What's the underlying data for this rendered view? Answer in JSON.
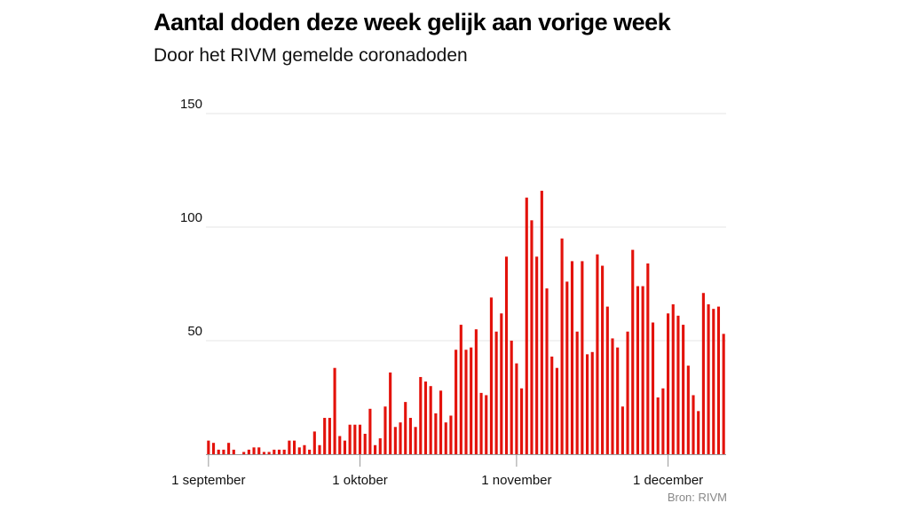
{
  "title": "Aantal doden deze week gelijk aan vorige week",
  "subtitle": "Door het RIVM gemelde coronadoden",
  "source": "Bron: RIVM",
  "colors": {
    "bar": "#e3120b",
    "grid": "#e6e6e6",
    "axis": "#999999"
  },
  "chart_data": {
    "type": "bar",
    "title": "Aantal doden deze week gelijk aan vorige week",
    "subtitle": "Door het RIVM gemelde coronadoden",
    "xlabel": "",
    "ylabel": "",
    "ylim": [
      0,
      150
    ],
    "y_ticks": [
      50,
      100,
      150
    ],
    "grid": true,
    "x_ticks": [
      {
        "label": "1 september",
        "date": "2020-09-01"
      },
      {
        "label": "1 oktober",
        "date": "2020-10-01"
      },
      {
        "label": "1 november",
        "date": "2020-11-01"
      },
      {
        "label": "1 december",
        "date": "2020-12-01"
      }
    ],
    "series": [
      {
        "categories": [
          "2020-09-01",
          "2020-09-02",
          "2020-09-03",
          "2020-09-04",
          "2020-09-05",
          "2020-09-06",
          "2020-09-07",
          "2020-09-08",
          "2020-09-09",
          "2020-09-10",
          "2020-09-11",
          "2020-09-12",
          "2020-09-13",
          "2020-09-14",
          "2020-09-15",
          "2020-09-16",
          "2020-09-17",
          "2020-09-18",
          "2020-09-19",
          "2020-09-20",
          "2020-09-21",
          "2020-09-22",
          "2020-09-23",
          "2020-09-24",
          "2020-09-25",
          "2020-09-26",
          "2020-09-27",
          "2020-09-28",
          "2020-09-29",
          "2020-09-30",
          "2020-10-01",
          "2020-10-02",
          "2020-10-03",
          "2020-10-04",
          "2020-10-05",
          "2020-10-06",
          "2020-10-07",
          "2020-10-08",
          "2020-10-09",
          "2020-10-10",
          "2020-10-11",
          "2020-10-12",
          "2020-10-13",
          "2020-10-14",
          "2020-10-15",
          "2020-10-16",
          "2020-10-17",
          "2020-10-18",
          "2020-10-19",
          "2020-10-20",
          "2020-10-21",
          "2020-10-22",
          "2020-10-23",
          "2020-10-24",
          "2020-10-25",
          "2020-10-26",
          "2020-10-27",
          "2020-10-28",
          "2020-10-29",
          "2020-10-30",
          "2020-10-31",
          "2020-11-01",
          "2020-11-02",
          "2020-11-03",
          "2020-11-04",
          "2020-11-05",
          "2020-11-06",
          "2020-11-07",
          "2020-11-08",
          "2020-11-09",
          "2020-11-10",
          "2020-11-11",
          "2020-11-12",
          "2020-11-13",
          "2020-11-14",
          "2020-11-15",
          "2020-11-16",
          "2020-11-17",
          "2020-11-18",
          "2020-11-19",
          "2020-11-20",
          "2020-11-21",
          "2020-11-22",
          "2020-11-23",
          "2020-11-24",
          "2020-11-25",
          "2020-11-26",
          "2020-11-27",
          "2020-11-28",
          "2020-11-29",
          "2020-11-30",
          "2020-12-01",
          "2020-12-02",
          "2020-12-03",
          "2020-12-04",
          "2020-12-05",
          "2020-12-06",
          "2020-12-07",
          "2020-12-08",
          "2020-12-09",
          "2020-12-10",
          "2020-12-11",
          "2020-12-12"
        ],
        "values": [
          6,
          5,
          2,
          2,
          5,
          2,
          0,
          1,
          2,
          3,
          3,
          1,
          1,
          2,
          2,
          2,
          6,
          6,
          3,
          4,
          2,
          10,
          4,
          16,
          16,
          38,
          8,
          6,
          13,
          13,
          13,
          9,
          20,
          4,
          7,
          21,
          36,
          12,
          14,
          23,
          16,
          12,
          34,
          32,
          30,
          18,
          28,
          14,
          17,
          46,
          57,
          46,
          47,
          55,
          27,
          26,
          69,
          54,
          62,
          87,
          50,
          40,
          29,
          113,
          103,
          87,
          116,
          73,
          43,
          38,
          95,
          76,
          85,
          54,
          85,
          44,
          45,
          88,
          83,
          65,
          51,
          47,
          21,
          54,
          90,
          74,
          74,
          84,
          58,
          25,
          29,
          62,
          66,
          61,
          57,
          39,
          26,
          19,
          71,
          66,
          64,
          65,
          53
        ]
      }
    ]
  }
}
